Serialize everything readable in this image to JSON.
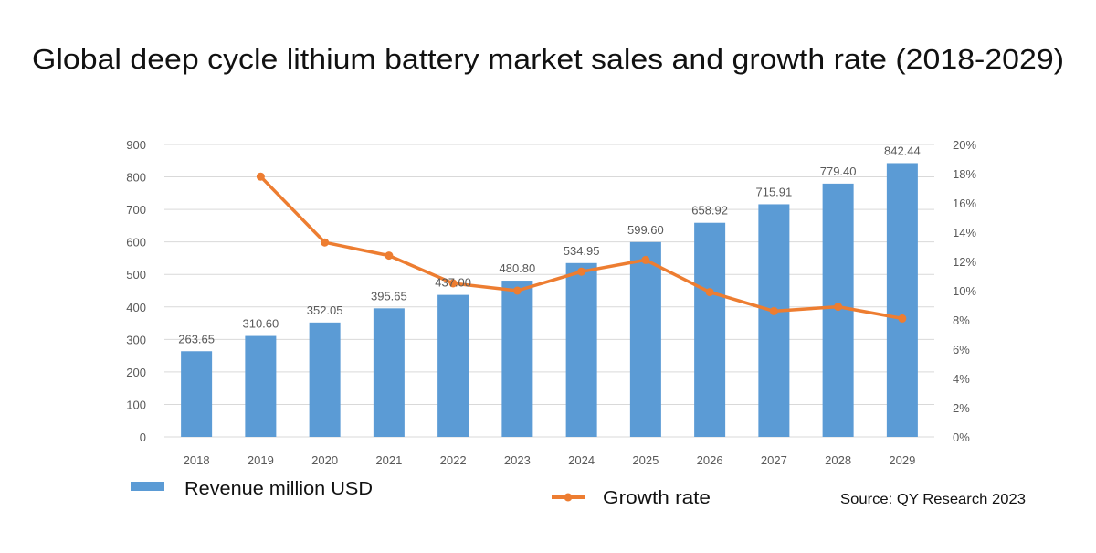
{
  "chart_data": {
    "type": "bar+line",
    "title": "Global deep cycle lithium battery market sales and growth rate (2018-2029)",
    "categories": [
      "2018",
      "2019",
      "2020",
      "2021",
      "2022",
      "2023",
      "2024",
      "2025",
      "2026",
      "2027",
      "2028",
      "2029"
    ],
    "series": [
      {
        "name": "Revenue million USD",
        "type": "bar",
        "axis": "left",
        "color": "#5b9bd5",
        "values": [
          263.65,
          310.6,
          352.05,
          395.65,
          437.0,
          480.8,
          534.95,
          599.6,
          658.92,
          715.91,
          779.4,
          842.44
        ],
        "labels": [
          "263.65",
          "310.60",
          "352.05",
          "395.65",
          "437.00",
          "480.80",
          "534.95",
          "599.60",
          "658.92",
          "715.91",
          "779.40",
          "842.44"
        ]
      },
      {
        "name": "Growth rate",
        "type": "line",
        "axis": "right",
        "color": "#ed7d31",
        "values": [
          null,
          17.8,
          13.3,
          12.4,
          10.5,
          10.0,
          11.3,
          12.1,
          9.9,
          8.6,
          8.9,
          8.1
        ]
      }
    ],
    "left_axis": {
      "ylim": [
        0,
        900
      ],
      "ticks": [
        "0",
        "100",
        "200",
        "300",
        "400",
        "500",
        "600",
        "700",
        "800",
        "900"
      ]
    },
    "right_axis": {
      "ylim": [
        0,
        20
      ],
      "ticks": [
        "0%",
        "2%",
        "4%",
        "6%",
        "8%",
        "10%",
        "12%",
        "14%",
        "16%",
        "18%",
        "20%"
      ]
    },
    "grid": true,
    "legend_placement": "bottom",
    "source": "Source: QY Research 2023"
  }
}
